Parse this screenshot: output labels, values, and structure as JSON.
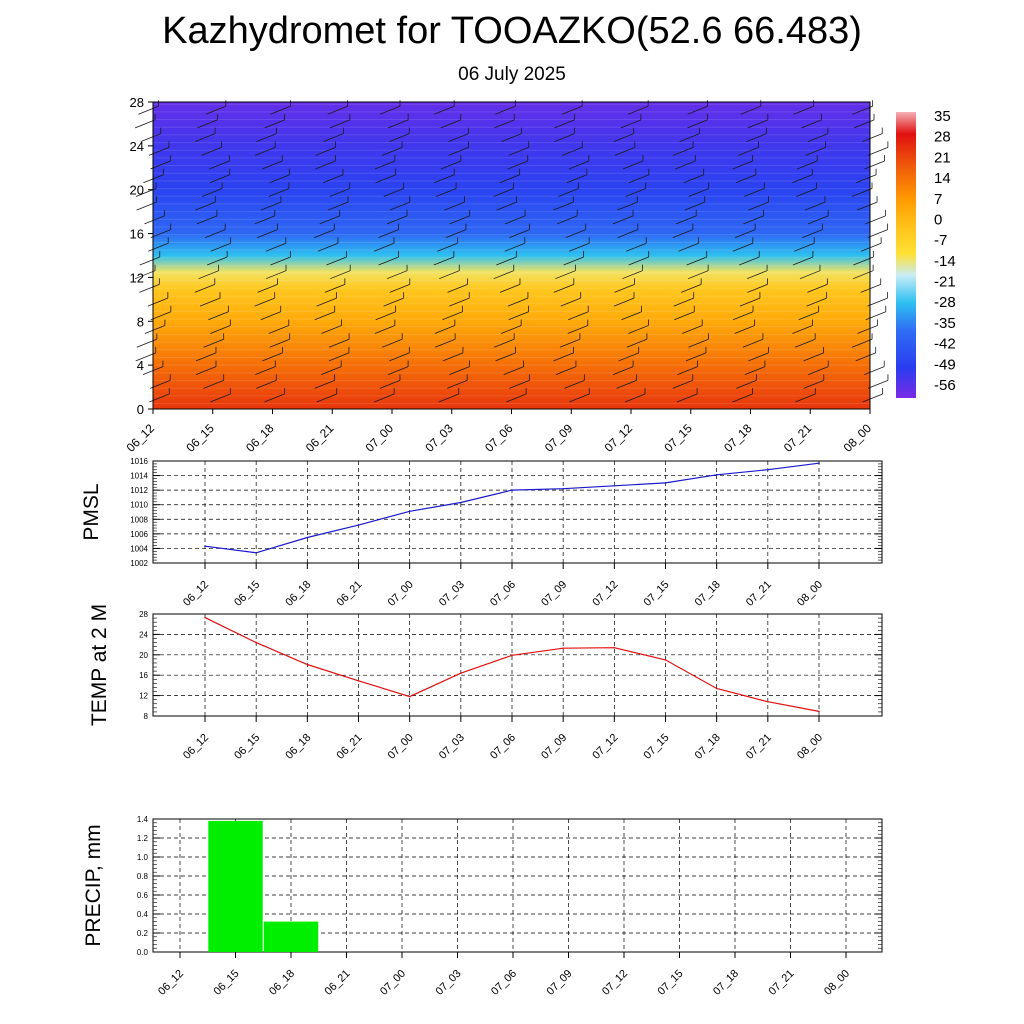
{
  "title": "Kazhydromet for TOOAZKO(52.6 66.483)",
  "subtitle": "06 July 2025",
  "time_labels": [
    "06_12",
    "06_15",
    "06_18",
    "06_21",
    "07_00",
    "07_03",
    "07_06",
    "07_09",
    "07_12",
    "07_15",
    "07_18",
    "07_21",
    "08_00"
  ],
  "chart_data": [
    {
      "type": "heatmap",
      "x": [
        "06_12",
        "06_15",
        "06_18",
        "06_21",
        "07_00",
        "07_03",
        "07_06",
        "07_09",
        "07_12",
        "07_15",
        "07_18",
        "07_21",
        "08_00"
      ],
      "y_ticks": [
        0,
        4,
        8,
        12,
        16,
        20,
        24,
        28
      ],
      "ylim": [
        0,
        28
      ],
      "colorbar_labels": [
        "35",
        "28",
        "21",
        "14",
        "7",
        "0",
        "-7",
        "-14",
        "-21",
        "-28",
        "-35",
        "-42",
        "-49",
        "-56"
      ],
      "colorbar_range": [
        -63,
        42
      ],
      "profile": [
        {
          "level": 0,
          "value": 28
        },
        {
          "level": 4,
          "value": 18
        },
        {
          "level": 8,
          "value": 6
        },
        {
          "level": 11,
          "value": -2
        },
        {
          "level": 12.5,
          "value": -12
        },
        {
          "level": 14,
          "value": -28
        },
        {
          "level": 16,
          "value": -40
        },
        {
          "level": 20,
          "value": -50
        },
        {
          "level": 24,
          "value": -55
        },
        {
          "level": 28,
          "value": -60
        }
      ],
      "colors": {
        "warm": "#e01010",
        "orange": "#ff9a00",
        "yellow": "#ffe033",
        "cyan": "#2ec0f0",
        "blue": "#2a3cf0",
        "violet": "#7a2ae6"
      }
    },
    {
      "type": "line",
      "ylabel": "PMSL",
      "x": [
        "06_12",
        "06_15",
        "06_18",
        "06_21",
        "07_00",
        "07_03",
        "07_06",
        "07_09",
        "07_12",
        "07_15",
        "07_18",
        "07_21",
        "08_00"
      ],
      "values": [
        1004.3,
        1003.4,
        1005.5,
        1007.2,
        1009.1,
        1010.3,
        1012.0,
        1012.2,
        1012.6,
        1013.0,
        1014.1,
        1014.8,
        1015.7
      ],
      "ylim": [
        1002,
        1016
      ],
      "y_ticks": [
        "1002",
        "1004",
        "1006",
        "1008",
        "1010",
        "1012",
        "1014",
        "1016"
      ],
      "line_color": "#1a1acc",
      "grid": true
    },
    {
      "type": "line",
      "ylabel": "TEMP at 2 M",
      "x": [
        "06_12",
        "06_15",
        "06_18",
        "06_21",
        "07_00",
        "07_03",
        "07_06",
        "07_09",
        "07_12",
        "07_15",
        "07_18",
        "07_21",
        "08_00"
      ],
      "values": [
        27.3,
        22.4,
        18.1,
        14.9,
        11.8,
        16.4,
        19.9,
        21.3,
        21.4,
        19.0,
        13.4,
        10.8,
        8.9
      ],
      "ylim": [
        8,
        28
      ],
      "y_ticks": [
        "8",
        "12",
        "16",
        "20",
        "24",
        "28"
      ],
      "line_color": "#e01010",
      "grid": true
    },
    {
      "type": "bar",
      "ylabel": "PRECIP, mm",
      "categories": [
        "06_12",
        "06_15",
        "06_18",
        "06_21",
        "07_00",
        "07_03",
        "07_06",
        "07_09",
        "07_12",
        "07_15",
        "07_18",
        "07_21",
        "08_00"
      ],
      "values": [
        0,
        1.38,
        0.32,
        0,
        0,
        0,
        0,
        0,
        0,
        0,
        0,
        0,
        0
      ],
      "ylim": [
        0,
        1.4
      ],
      "y_ticks": [
        "0.0",
        "0.2",
        "0.4",
        "0.6",
        "0.8",
        "1.0",
        "1.2",
        "1.4"
      ],
      "bar_color": "#00ee00",
      "grid": true
    }
  ]
}
